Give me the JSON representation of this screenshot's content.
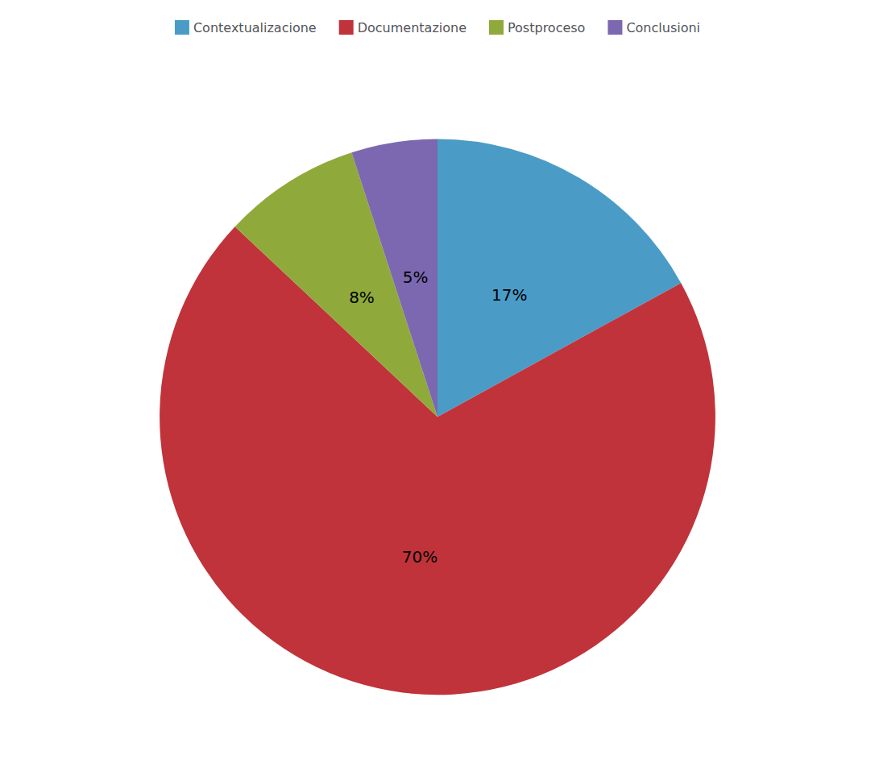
{
  "chart_data": {
    "type": "pie",
    "categories": [
      "Contextualizacione",
      "Documentazione",
      "Postproceso",
      "Conclusioni"
    ],
    "values": [
      17,
      70,
      8,
      5
    ],
    "value_labels": [
      "17%",
      "70%",
      "8%",
      "5%"
    ],
    "colors": [
      "#4a9cc7",
      "#c0333a",
      "#8faa3a",
      "#7b68b0"
    ],
    "data_labels": true,
    "legend": "top"
  }
}
